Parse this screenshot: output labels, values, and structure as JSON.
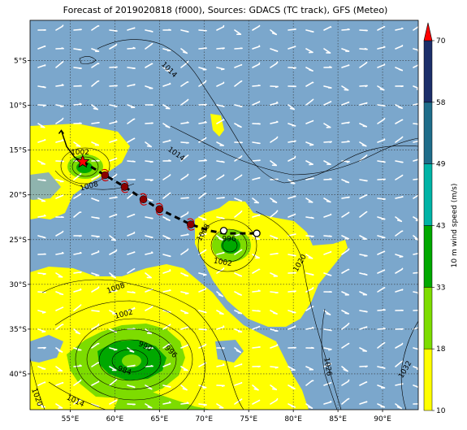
{
  "title": "Forecast of 2019020818 (f000), Sources: GDACS (TC track), GFS (Meteo)",
  "map": {
    "lon_range": [
      50.5,
      94.0
    ],
    "lat_range": [
      -44.0,
      -0.5
    ],
    "x_ticks": [
      {
        "value": 55,
        "label": "55°E"
      },
      {
        "value": 60,
        "label": "60°E"
      },
      {
        "value": 65,
        "label": "65°E"
      },
      {
        "value": 70,
        "label": "70°E"
      },
      {
        "value": 75,
        "label": "75°E"
      },
      {
        "value": 80,
        "label": "80°E"
      },
      {
        "value": 85,
        "label": "85°E"
      },
      {
        "value": 90,
        "label": "90°E"
      }
    ],
    "y_ticks": [
      {
        "value": -5,
        "label": "5°S"
      },
      {
        "value": -10,
        "label": "10°S"
      },
      {
        "value": -15,
        "label": "15°S"
      },
      {
        "value": -20,
        "label": "20°S"
      },
      {
        "value": -25,
        "label": "25°S"
      },
      {
        "value": -30,
        "label": "30°S"
      },
      {
        "value": -35,
        "label": "35°S"
      },
      {
        "value": -40,
        "label": "40°S"
      }
    ],
    "grid": true,
    "ocean_color": "#7ba7cc"
  },
  "colorbar": {
    "label": "10 m wind speed (m/s)",
    "ticks": [
      "10",
      "18",
      "33",
      "43",
      "49",
      "58",
      "70"
    ],
    "colors": [
      "#ffff00",
      "#7ddc00",
      "#00a800",
      "#00b3a6",
      "#1f6d8a",
      "#1c2f6a"
    ],
    "extend_color": "#ff0000"
  },
  "isobar_labels": [
    {
      "text": "1014",
      "lon": 66.1,
      "lat": -6.0,
      "rot": 45
    },
    {
      "text": "1014",
      "lon": 66.9,
      "lat": -15.4,
      "rot": 35
    },
    {
      "text": "1002",
      "lon": 56.1,
      "lat": -15.2,
      "rot": 0
    },
    {
      "text": "1008",
      "lon": 57.1,
      "lat": -19.0,
      "rot": -15
    },
    {
      "text": "1008",
      "lon": 69.9,
      "lat": -24.2,
      "rot": -60
    },
    {
      "text": "996",
      "lon": 72.8,
      "lat": -24.9,
      "rot": 0
    },
    {
      "text": "1002",
      "lon": 72.1,
      "lat": -27.5,
      "rot": 10
    },
    {
      "text": "1020",
      "lon": 80.7,
      "lat": -27.6,
      "rot": -60
    },
    {
      "text": "1008",
      "lon": 60.1,
      "lat": -30.4,
      "rot": -20
    },
    {
      "text": "1002",
      "lon": 61.0,
      "lat": -33.3,
      "rot": -15
    },
    {
      "text": "990",
      "lon": 63.4,
      "lat": -36.9,
      "rot": 25
    },
    {
      "text": "996",
      "lon": 66.3,
      "lat": -37.5,
      "rot": 45
    },
    {
      "text": "984",
      "lon": 61.1,
      "lat": -39.6,
      "rot": 20
    },
    {
      "text": "1026",
      "lon": 83.9,
      "lat": -39.2,
      "rot": 80
    },
    {
      "text": "1032",
      "lon": 92.5,
      "lat": -39.5,
      "rot": -60
    },
    {
      "text": "1020",
      "lon": 51.3,
      "lat": -42.6,
      "rot": 70
    },
    {
      "text": "1014",
      "lon": 55.6,
      "lat": -43.0,
      "rot": 25
    }
  ],
  "cyclone": {
    "current": {
      "lon": 56.4,
      "lat": -16.3
    },
    "past_track": [
      [
        54.0,
        -12.8
      ],
      [
        54.6,
        -14.6
      ],
      [
        55.5,
        -15.8
      ],
      [
        56.4,
        -16.3
      ]
    ],
    "forecast_points": [
      {
        "lon": 58.9,
        "lat": -17.8
      },
      {
        "lon": 61.1,
        "lat": -19.1
      },
      {
        "lon": 63.2,
        "lat": -20.5
      },
      {
        "lon": 65.0,
        "lat": -21.6
      },
      {
        "lon": 68.5,
        "lat": -23.3
      }
    ],
    "forecast_track": [
      [
        56.4,
        -16.3
      ],
      [
        58.9,
        -17.8
      ],
      [
        61.1,
        -19.1
      ],
      [
        63.2,
        -20.5
      ],
      [
        65.0,
        -21.6
      ],
      [
        68.5,
        -23.3
      ],
      [
        70.6,
        -24.0
      ],
      [
        72.2,
        -24.3
      ],
      [
        74.0,
        -24.3
      ],
      [
        75.8,
        -24.3
      ]
    ],
    "open_circles": [
      {
        "lon": 72.2,
        "lat": -24.0
      },
      {
        "lon": 75.9,
        "lat": -24.3
      }
    ]
  }
}
